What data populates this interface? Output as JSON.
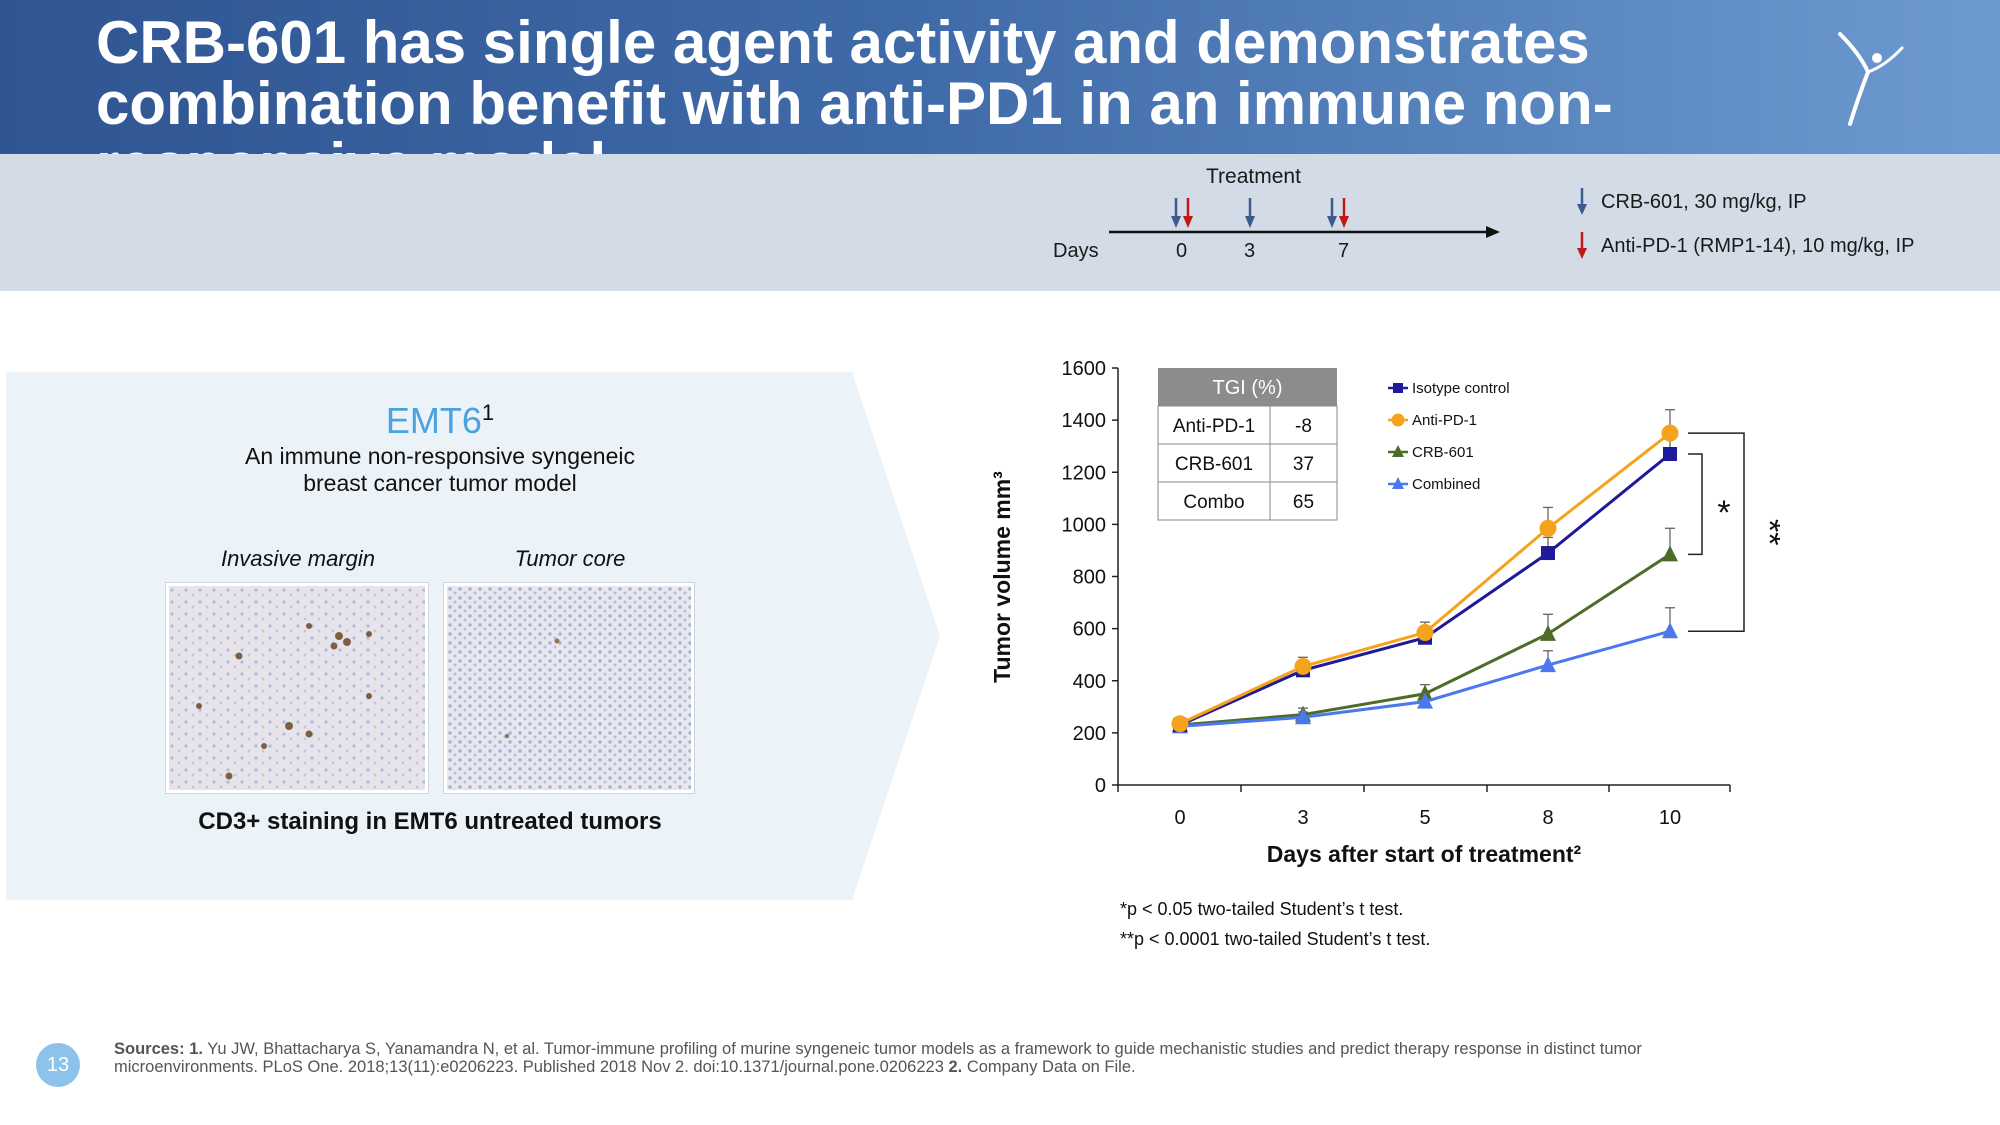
{
  "header": {
    "title": "CRB-601 has single agent activity and demonstrates combination benefit with anti-PD1 in an immune non-responsive model"
  },
  "timeline": {
    "title": "Treatment",
    "days_label": "Days",
    "days": [
      "0",
      "3",
      "7"
    ],
    "legend": [
      {
        "label": "CRB-601, 30 mg/kg, IP",
        "color": "#3d5a8c"
      },
      {
        "label": "Anti-PD-1 (RMP1-14), 10 mg/kg, IP",
        "color": "#c01818"
      }
    ]
  },
  "model": {
    "title": "EMT6",
    "title_sup": "1",
    "subtitle_line1": "An immune non-responsive syngeneic",
    "subtitle_line2": "breast cancer tumor model",
    "image_labels": [
      "Invasive margin",
      "Tumor core"
    ],
    "caption": "CD3+ staining in EMT6 untreated tumors"
  },
  "tgi_table": {
    "header": "TGI (%)",
    "rows": [
      [
        "Anti-PD-1",
        "-8"
      ],
      [
        "CRB-601",
        "37"
      ],
      [
        "Combo",
        "65"
      ]
    ]
  },
  "chart_data": {
    "type": "line",
    "xlabel": "Days after start of treatment²",
    "ylabel": "Tumor volume mm³",
    "x": [
      0,
      3,
      5,
      8,
      10
    ],
    "ylim": [
      0,
      1600
    ],
    "yticks": [
      0,
      200,
      400,
      600,
      800,
      1000,
      1200,
      1400,
      1600
    ],
    "series": [
      {
        "name": "Isotype control",
        "color": "#1f1a9a",
        "marker": "square",
        "values": [
          230,
          440,
          565,
          890,
          1270
        ],
        "errors": [
          0,
          30,
          40,
          60,
          80
        ]
      },
      {
        "name": "Anti-PD-1",
        "color": "#f5a31c",
        "marker": "circle",
        "values": [
          235,
          455,
          585,
          985,
          1350
        ],
        "errors": [
          0,
          35,
          40,
          80,
          90
        ]
      },
      {
        "name": "CRB-601",
        "color": "#4f6b2a",
        "marker": "triangle",
        "values": [
          230,
          270,
          350,
          580,
          885
        ],
        "errors": [
          0,
          25,
          35,
          75,
          100
        ]
      },
      {
        "name": "Combined",
        "color": "#4b78ee",
        "marker": "triangle",
        "values": [
          225,
          260,
          320,
          460,
          590
        ],
        "errors": [
          0,
          20,
          30,
          55,
          90
        ]
      }
    ],
    "significance": [
      "*",
      "**"
    ]
  },
  "footnotes": {
    "line1": "*p < 0.05 two-tailed Student’s t test.",
    "line2": "**p < 0.0001 two-tailed Student’s t test."
  },
  "sources": {
    "label": "Sources:",
    "n1": "1.",
    "text1": "Yu JW, Bhattacharya S, Yanamandra N, et al. Tumor-immune profiling of murine syngeneic tumor models as a framework to guide mechanistic studies and predict therapy response in distinct tumor microenvironments. PLoS One. 2018;13(11):e0206223. Published 2018 Nov 2. doi:10.1371/journal.pone.0206223",
    "n2": "2.",
    "text2": "Company Data on File."
  },
  "page_number": "13"
}
